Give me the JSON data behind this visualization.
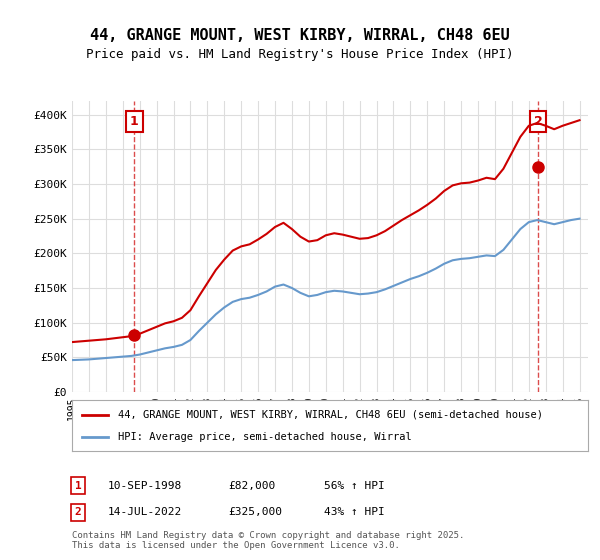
{
  "title": "44, GRANGE MOUNT, WEST KIRBY, WIRRAL, CH48 6EU",
  "subtitle": "Price paid vs. HM Land Registry's House Price Index (HPI)",
  "ylabel_ticks": [
    "£0",
    "£50K",
    "£100K",
    "£150K",
    "£200K",
    "£250K",
    "£300K",
    "£350K",
    "£400K"
  ],
  "ytick_values": [
    0,
    50000,
    100000,
    150000,
    200000,
    250000,
    300000,
    350000,
    400000
  ],
  "ylim": [
    0,
    420000
  ],
  "xlim_start": 1995.0,
  "xlim_end": 2025.5,
  "red_color": "#cc0000",
  "blue_color": "#6699cc",
  "dashed_color": "#cc0000",
  "background_color": "#ffffff",
  "grid_color": "#dddddd",
  "legend_label_red": "44, GRANGE MOUNT, WEST KIRBY, WIRRAL, CH48 6EU (semi-detached house)",
  "legend_label_blue": "HPI: Average price, semi-detached house, Wirral",
  "sale1_date": 1998.69,
  "sale1_price": 82000,
  "sale1_label": "1",
  "sale2_date": 2022.54,
  "sale2_price": 325000,
  "sale2_label": "2",
  "table_rows": [
    [
      "1",
      "10-SEP-1998",
      "£82,000",
      "56% ↑ HPI"
    ],
    [
      "2",
      "14-JUL-2022",
      "£325,000",
      "43% ↑ HPI"
    ]
  ],
  "footer_text": "Contains HM Land Registry data © Crown copyright and database right 2025.\nThis data is licensed under the Open Government Licence v3.0.",
  "hpi_years": [
    1995,
    1995.5,
    1996,
    1996.5,
    1997,
    1997.5,
    1998,
    1998.5,
    1999,
    1999.5,
    2000,
    2000.5,
    2001,
    2001.5,
    2002,
    2002.5,
    2003,
    2003.5,
    2004,
    2004.5,
    2005,
    2005.5,
    2006,
    2006.5,
    2007,
    2007.5,
    2008,
    2008.5,
    2009,
    2009.5,
    2010,
    2010.5,
    2011,
    2011.5,
    2012,
    2012.5,
    2013,
    2013.5,
    2014,
    2014.5,
    2015,
    2015.5,
    2016,
    2016.5,
    2017,
    2017.5,
    2018,
    2018.5,
    2019,
    2019.5,
    2020,
    2020.5,
    2021,
    2021.5,
    2022,
    2022.5,
    2023,
    2023.5,
    2024,
    2024.5,
    2025
  ],
  "hpi_values": [
    46000,
    46500,
    47000,
    48000,
    49000,
    50000,
    51000,
    52000,
    54000,
    57000,
    60000,
    63000,
    65000,
    68000,
    75000,
    88000,
    100000,
    112000,
    122000,
    130000,
    134000,
    136000,
    140000,
    145000,
    152000,
    155000,
    150000,
    143000,
    138000,
    140000,
    144000,
    146000,
    145000,
    143000,
    141000,
    142000,
    144000,
    148000,
    153000,
    158000,
    163000,
    167000,
    172000,
    178000,
    185000,
    190000,
    192000,
    193000,
    195000,
    197000,
    196000,
    205000,
    220000,
    235000,
    245000,
    248000,
    245000,
    242000,
    245000,
    248000,
    250000
  ],
  "red_years": [
    1995,
    1995.5,
    1996,
    1996.5,
    1997,
    1997.5,
    1998,
    1998.5,
    1999,
    1999.5,
    2000,
    2000.5,
    2001,
    2001.5,
    2002,
    2002.5,
    2003,
    2003.5,
    2004,
    2004.5,
    2005,
    2005.5,
    2006,
    2006.5,
    2007,
    2007.5,
    2008,
    2008.5,
    2009,
    2009.5,
    2010,
    2010.5,
    2011,
    2011.5,
    2012,
    2012.5,
    2013,
    2013.5,
    2014,
    2014.5,
    2015,
    2015.5,
    2016,
    2016.5,
    2017,
    2017.5,
    2018,
    2018.5,
    2019,
    2019.5,
    2020,
    2020.5,
    2021,
    2021.5,
    2022,
    2022.5,
    2023,
    2023.5,
    2024,
    2024.5,
    2025
  ],
  "red_values": [
    72000,
    73000,
    74000,
    75000,
    76000,
    77500,
    79000,
    80500,
    84000,
    89000,
    94000,
    99000,
    102000,
    107000,
    118000,
    138000,
    157000,
    176000,
    191000,
    204000,
    210000,
    213000,
    220000,
    228000,
    238000,
    244000,
    235000,
    224000,
    217000,
    219000,
    226000,
    229000,
    227000,
    224000,
    221000,
    222000,
    226000,
    232000,
    240000,
    248000,
    255000,
    262000,
    270000,
    279000,
    290000,
    298000,
    301000,
    302000,
    305000,
    309000,
    307000,
    322000,
    345000,
    368000,
    384000,
    388000,
    384000,
    379000,
    384000,
    388000,
    392000
  ]
}
